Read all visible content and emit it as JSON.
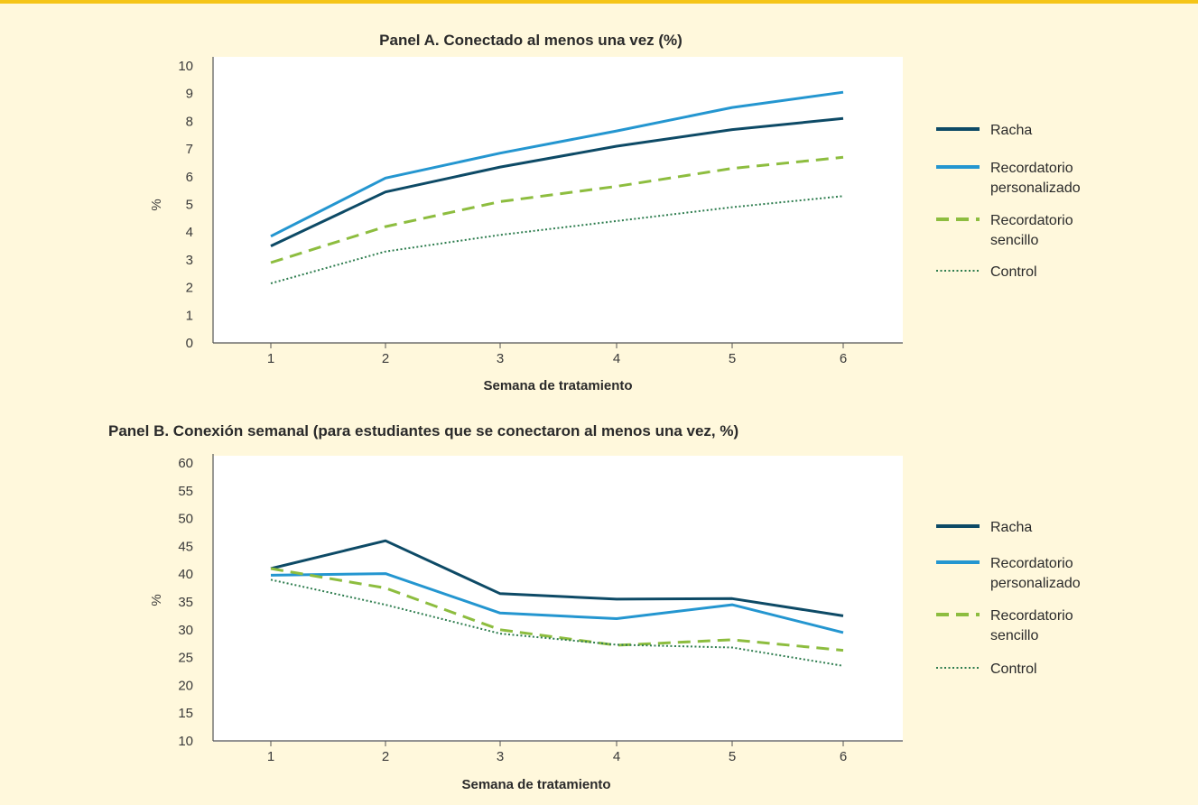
{
  "colors": {
    "background": "#fff8dc",
    "accent_rule": "#f5c518",
    "racha": "#0d4a66",
    "personalizado": "#2496d0",
    "sencillo": "#8dbd3f",
    "control": "#2e7d4f"
  },
  "chart_data": [
    {
      "type": "line",
      "title": "Panel A. Conectado al menos una vez (%)",
      "xlabel": "Semana de tratamiento",
      "ylabel": "%",
      "categories": [
        "1",
        "2",
        "3",
        "4",
        "5",
        "6"
      ],
      "ylim": [
        0,
        10
      ],
      "yticks": [
        "0",
        "1",
        "2",
        "3",
        "4",
        "5",
        "6",
        "7",
        "8",
        "9",
        "10"
      ],
      "grid": false,
      "legend_position": "right",
      "series": [
        {
          "name": "Racha",
          "values": [
            3.5,
            5.45,
            6.35,
            7.1,
            7.7,
            8.1
          ],
          "color": "#0d4a66",
          "style": "solid"
        },
        {
          "name": "Recordatorio personalizado",
          "values": [
            3.85,
            5.95,
            6.85,
            7.65,
            8.5,
            9.05
          ],
          "color": "#2496d0",
          "style": "solid"
        },
        {
          "name": "Recordatorio sencillo",
          "values": [
            2.9,
            4.2,
            5.1,
            5.65,
            6.3,
            6.7
          ],
          "color": "#8dbd3f",
          "style": "dashed"
        },
        {
          "name": "Control",
          "values": [
            2.15,
            3.3,
            3.9,
            4.4,
            4.9,
            5.3
          ],
          "color": "#2e7d4f",
          "style": "dotted"
        }
      ],
      "legend": [
        {
          "line1": "Racha",
          "line2": ""
        },
        {
          "line1": "Recordatorio",
          "line2": "personalizado"
        },
        {
          "line1": "Recordatorio",
          "line2": "sencillo"
        },
        {
          "line1": "Control",
          "line2": ""
        }
      ]
    },
    {
      "type": "line",
      "title": "Panel B. Conexión semanal (para estudiantes que se conectaron al menos una vez, %)",
      "xlabel": "Semana de tratamiento",
      "ylabel": "%",
      "categories": [
        "1",
        "2",
        "3",
        "4",
        "5",
        "6"
      ],
      "ylim": [
        10,
        60
      ],
      "yticks": [
        "10",
        "15",
        "20",
        "25",
        "30",
        "35",
        "40",
        "45",
        "50",
        "55",
        "60"
      ],
      "grid": false,
      "legend_position": "right",
      "series": [
        {
          "name": "Racha",
          "values": [
            41,
            46,
            36.5,
            35.5,
            35.6,
            32.5
          ],
          "color": "#0d4a66",
          "style": "solid"
        },
        {
          "name": "Recordatorio personalizado",
          "values": [
            39.8,
            40.1,
            33,
            32,
            34.5,
            29.5
          ],
          "color": "#2496d0",
          "style": "solid"
        },
        {
          "name": "Recordatorio sencillo",
          "values": [
            41,
            37.5,
            30,
            27.2,
            28.2,
            26.3
          ],
          "color": "#8dbd3f",
          "style": "dashed"
        },
        {
          "name": "Control",
          "values": [
            39,
            34.5,
            29.3,
            27.3,
            26.8,
            23.5
          ],
          "color": "#2e7d4f",
          "style": "dotted"
        }
      ],
      "legend": [
        {
          "line1": "Racha",
          "line2": ""
        },
        {
          "line1": "Recordatorio",
          "line2": "personalizado"
        },
        {
          "line1": "Recordatorio",
          "line2": "sencillo"
        },
        {
          "line1": "Control",
          "line2": ""
        }
      ]
    }
  ]
}
